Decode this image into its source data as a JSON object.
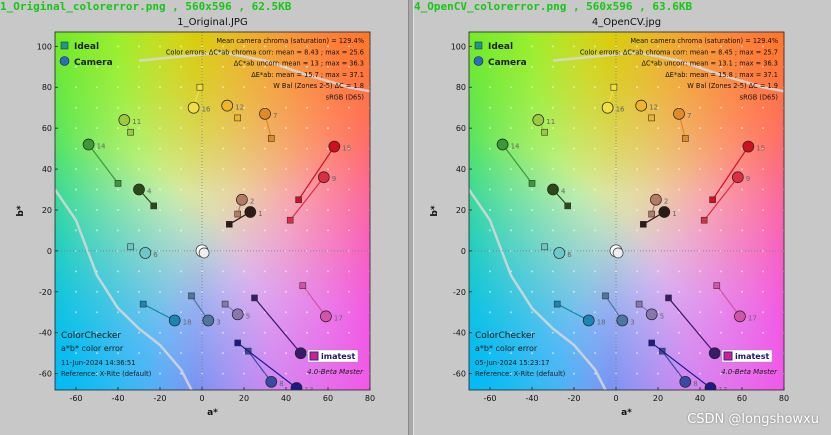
{
  "watermark": "CSDN @longshowxu",
  "chart_data": [
    {
      "type": "scatter",
      "file_header": "1_Original_colorerror.png , 560x596 , 62.5KB",
      "title": "1_Original.JPG",
      "xlabel": "a*",
      "ylabel": "b*",
      "xlim": [
        -70,
        80
      ],
      "ylim": [
        -68,
        107
      ],
      "xticks": [
        -60,
        -40,
        -20,
        0,
        20,
        40,
        60,
        80
      ],
      "yticks": [
        -60,
        -40,
        -20,
        0,
        20,
        40,
        60,
        80,
        100
      ],
      "legend": [
        "Ideal",
        "Camera"
      ],
      "stats": [
        "Mean camera chroma (saturation) = 129.4%",
        "Color errors: ΔC*ab chroma corr: mean = 8.43 ; max = 25.6",
        "ΔC*ab uncorr: mean = 13 ; max = 36.3",
        "ΔE*ab: mean = 15.7 ; max = 37.1",
        "W Bal (Zones 2-5) ΔC = 1.8",
        "sRGB (D65)"
      ],
      "info_title": "ColorChecker",
      "info_subtitle": "a*b* color error",
      "date": "11-Jun-2024 14:36:51",
      "reference": "Reference: X-Rite (default)",
      "brand": "imatest",
      "version": "4.0-Beta Master",
      "patches": [
        {
          "label": "1",
          "ideal": [
            13,
            13
          ],
          "camera": [
            23,
            19
          ],
          "color": "#2e1a14"
        },
        {
          "label": "2",
          "ideal": [
            17,
            18
          ],
          "camera": [
            19,
            25
          ],
          "color": "#b47a64"
        },
        {
          "label": "3",
          "ideal": [
            -5,
            -22
          ],
          "camera": [
            3,
            -34
          ],
          "color": "#4e76a2"
        },
        {
          "label": "4",
          "ideal": [
            -23,
            22
          ],
          "camera": [
            -30,
            30
          ],
          "color": "#2c4a18"
        },
        {
          "label": "5",
          "ideal": [
            11,
            -26
          ],
          "camera": [
            17,
            -31
          ],
          "color": "#8678ae"
        },
        {
          "label": "6",
          "ideal": [
            -34,
            2
          ],
          "camera": [
            -27,
            -1
          ],
          "color": "#6fc8c8"
        },
        {
          "label": "7",
          "ideal": [
            33,
            55
          ],
          "camera": [
            30,
            67
          ],
          "color": "#e08a2a"
        },
        {
          "label": "8",
          "ideal": [
            22,
            -49
          ],
          "camera": [
            33,
            -64
          ],
          "color": "#3a4aa4"
        },
        {
          "label": "9",
          "ideal": [
            42,
            15
          ],
          "camera": [
            58,
            36
          ],
          "color": "#e02c40"
        },
        {
          "label": "10",
          "ideal": [
            25,
            -23
          ],
          "camera": [
            47,
            -50
          ],
          "color": "#3a1a6a"
        },
        {
          "label": "11",
          "ideal": [
            -34,
            58
          ],
          "camera": [
            -37,
            64
          ],
          "color": "#9ec842"
        },
        {
          "label": "12",
          "ideal": [
            17,
            65
          ],
          "camera": [
            12,
            71
          ],
          "color": "#f0b42a"
        },
        {
          "label": "13",
          "ideal": [
            17,
            -45
          ],
          "camera": [
            45,
            -67
          ],
          "color": "#1c1a8a"
        },
        {
          "label": "14",
          "ideal": [
            -40,
            33
          ],
          "camera": [
            -54,
            52
          ],
          "color": "#3a9a3a"
        },
        {
          "label": "15",
          "ideal": [
            46,
            25
          ],
          "camera": [
            63,
            51
          ],
          "color": "#d01020"
        },
        {
          "label": "16",
          "ideal": [
            -1,
            80
          ],
          "camera": [
            -4,
            70
          ],
          "color": "#f2e040"
        },
        {
          "label": "17",
          "ideal": [
            48,
            -17
          ],
          "camera": [
            59,
            -32
          ],
          "color": "#d254a8"
        },
        {
          "label": "18",
          "ideal": [
            -28,
            -26
          ],
          "camera": [
            -13,
            -34
          ],
          "color": "#1a86b4"
        }
      ]
    },
    {
      "type": "scatter",
      "file_header": "4_OpenCV_colorerror.png , 560x596 , 63.6KB",
      "title": "4_OpenCV.jpg",
      "xlabel": "a*",
      "ylabel": "b*",
      "xlim": [
        -70,
        80
      ],
      "ylim": [
        -68,
        107
      ],
      "xticks": [
        -60,
        -40,
        -20,
        0,
        20,
        40,
        60,
        80
      ],
      "yticks": [
        -60,
        -40,
        -20,
        0,
        20,
        40,
        60,
        80,
        100
      ],
      "legend": [
        "Ideal",
        "Camera"
      ],
      "stats": [
        "Mean camera chroma (saturation) = 129.4%",
        "Color errors: ΔC*ab chroma corr: mean = 8.45 ; max = 25.7",
        "ΔC*ab uncorr: mean = 13.1 ; max = 36.3",
        "ΔE*ab: mean = 15.8 ; max = 37.1",
        "W Bal (Zones 2-5) ΔC = 1.9",
        "sRGB (D65)"
      ],
      "info_title": "ColorChecker",
      "info_subtitle": "a*b* color error",
      "date": "05-Jun-2024 15:23:17",
      "reference": "Reference: X-Rite (default)",
      "brand": "imatest",
      "version": "4.0-Beta Master",
      "patches": [
        {
          "label": "1",
          "ideal": [
            13,
            13
          ],
          "camera": [
            23,
            19
          ],
          "color": "#2e1a14"
        },
        {
          "label": "2",
          "ideal": [
            17,
            18
          ],
          "camera": [
            19,
            25
          ],
          "color": "#b47a64"
        },
        {
          "label": "3",
          "ideal": [
            -5,
            -22
          ],
          "camera": [
            3,
            -34
          ],
          "color": "#4e76a2"
        },
        {
          "label": "4",
          "ideal": [
            -23,
            22
          ],
          "camera": [
            -30,
            30
          ],
          "color": "#2c4a18"
        },
        {
          "label": "5",
          "ideal": [
            11,
            -26
          ],
          "camera": [
            17,
            -31
          ],
          "color": "#8678ae"
        },
        {
          "label": "6",
          "ideal": [
            -34,
            2
          ],
          "camera": [
            -27,
            -1
          ],
          "color": "#6fc8c8"
        },
        {
          "label": "7",
          "ideal": [
            33,
            55
          ],
          "camera": [
            30,
            67
          ],
          "color": "#e08a2a"
        },
        {
          "label": "8",
          "ideal": [
            22,
            -49
          ],
          "camera": [
            33,
            -64
          ],
          "color": "#3a4aa4"
        },
        {
          "label": "9",
          "ideal": [
            42,
            15
          ],
          "camera": [
            58,
            36
          ],
          "color": "#e02c40"
        },
        {
          "label": "10",
          "ideal": [
            25,
            -23
          ],
          "camera": [
            47,
            -50
          ],
          "color": "#3a1a6a"
        },
        {
          "label": "11",
          "ideal": [
            -34,
            58
          ],
          "camera": [
            -37,
            64
          ],
          "color": "#9ec842"
        },
        {
          "label": "12",
          "ideal": [
            17,
            65
          ],
          "camera": [
            12,
            71
          ],
          "color": "#f0b42a"
        },
        {
          "label": "13",
          "ideal": [
            17,
            -45
          ],
          "camera": [
            45,
            -67
          ],
          "color": "#1c1a8a"
        },
        {
          "label": "14",
          "ideal": [
            -40,
            33
          ],
          "camera": [
            -54,
            52
          ],
          "color": "#3a9a3a"
        },
        {
          "label": "15",
          "ideal": [
            46,
            25
          ],
          "camera": [
            63,
            51
          ],
          "color": "#d01020"
        },
        {
          "label": "16",
          "ideal": [
            -1,
            80
          ],
          "camera": [
            -4,
            70
          ],
          "color": "#f2e040"
        },
        {
          "label": "17",
          "ideal": [
            48,
            -17
          ],
          "camera": [
            59,
            -32
          ],
          "color": "#d254a8"
        },
        {
          "label": "18",
          "ideal": [
            -28,
            -26
          ],
          "camera": [
            -13,
            -34
          ],
          "color": "#1a86b4"
        }
      ]
    }
  ]
}
